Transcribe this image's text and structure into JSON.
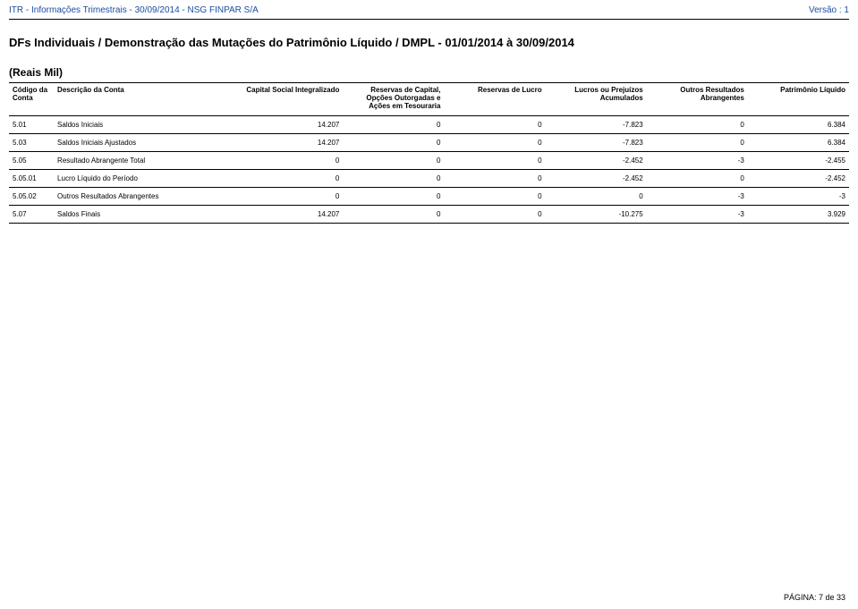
{
  "header": {
    "left": "ITR - Informações Trimestrais - 30/09/2014 - NSG FINPAR S/A",
    "right": "Versão : 1"
  },
  "title": "DFs Individuais / Demonstração das Mutações do Patrimônio Líquido / DMPL - 01/01/2014 à 30/09/2014",
  "subtitle": "(Reais Mil)",
  "table": {
    "columns": {
      "code": "Código da Conta",
      "desc": "Descrição da Conta",
      "c1": "Capital Social Integralizado",
      "c2": "Reservas de Capital, Opções Outorgadas e Ações em Tesouraria",
      "c3": "Reservas de Lucro",
      "c4": "Lucros ou Prejuízos Acumulados",
      "c5": "Outros Resultados Abrangentes",
      "c6": "Patrimônio Líquido"
    },
    "rows": [
      {
        "code": "5.01",
        "desc": "Saldos Iniciais",
        "c1": "14.207",
        "c2": "0",
        "c3": "0",
        "c4": "-7.823",
        "c5": "0",
        "c6": "6.384"
      },
      {
        "code": "5.03",
        "desc": "Saldos Iniciais Ajustados",
        "c1": "14.207",
        "c2": "0",
        "c3": "0",
        "c4": "-7.823",
        "c5": "0",
        "c6": "6.384"
      },
      {
        "code": "5.05",
        "desc": "Resultado Abrangente Total",
        "c1": "0",
        "c2": "0",
        "c3": "0",
        "c4": "-2.452",
        "c5": "-3",
        "c6": "-2.455"
      },
      {
        "code": "5.05.01",
        "desc": "Lucro Líquido do Período",
        "c1": "0",
        "c2": "0",
        "c3": "0",
        "c4": "-2.452",
        "c5": "0",
        "c6": "-2.452"
      },
      {
        "code": "5.05.02",
        "desc": "Outros Resultados Abrangentes",
        "c1": "0",
        "c2": "0",
        "c3": "0",
        "c4": "0",
        "c5": "-3",
        "c6": "-3"
      },
      {
        "code": "5.07",
        "desc": "Saldos Finais",
        "c1": "14.207",
        "c2": "0",
        "c3": "0",
        "c4": "-10.275",
        "c5": "-3",
        "c6": "3.929"
      }
    ]
  },
  "footer": "PÁGINA: 7 de 33"
}
